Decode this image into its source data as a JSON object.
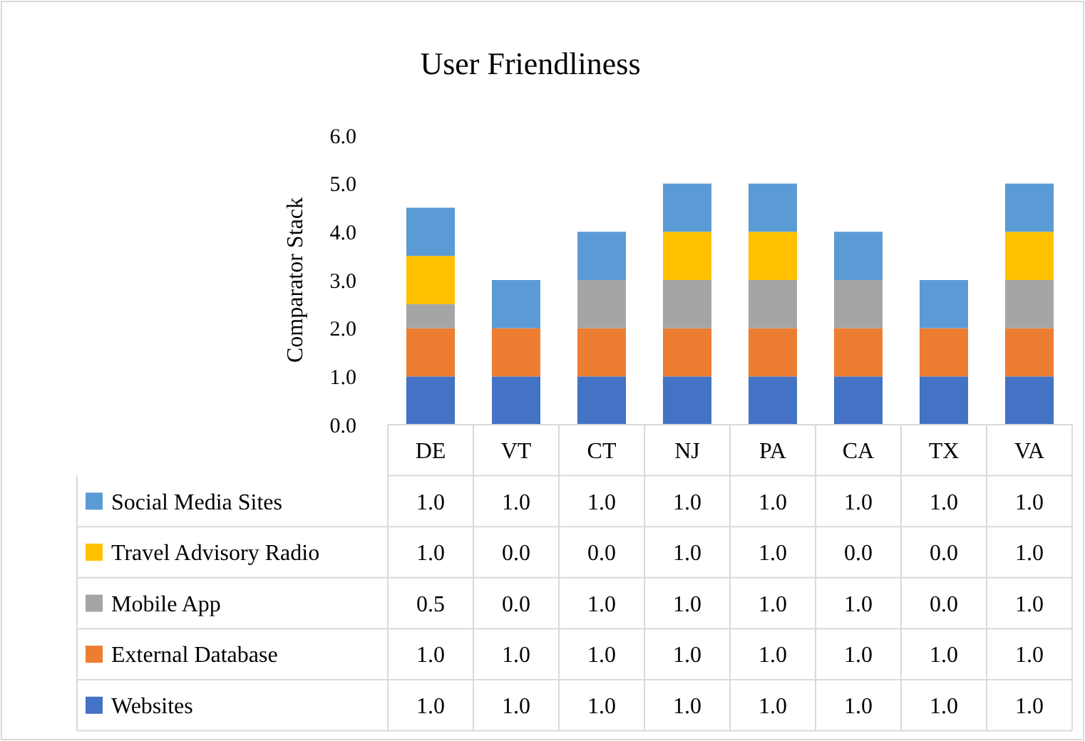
{
  "chart_data": {
    "type": "bar",
    "title": "User Friendliness",
    "ylabel": "Comparator Stack",
    "stacked": true,
    "legend": "bottom",
    "grid": false,
    "categories": [
      "DE",
      "VT",
      "CT",
      "NJ",
      "PA",
      "CA",
      "TX",
      "VA"
    ],
    "ylim": [
      0,
      6
    ],
    "yticks": [
      {
        "value": 0,
        "label": "0.0"
      },
      {
        "value": 1,
        "label": "1.0"
      },
      {
        "value": 2,
        "label": "2.0"
      },
      {
        "value": 3,
        "label": "3.0"
      },
      {
        "value": 4,
        "label": "4.0"
      },
      {
        "value": 5,
        "label": "5.0"
      },
      {
        "value": 6,
        "label": "6.0"
      }
    ],
    "series": [
      {
        "name": "Websites",
        "color": "#4472c4",
        "values": [
          1,
          1,
          1,
          1,
          1,
          1,
          1,
          1
        ],
        "value_labels": [
          "1.0",
          "1.0",
          "1.0",
          "1.0",
          "1.0",
          "1.0",
          "1.0",
          "1.0"
        ]
      },
      {
        "name": "External Database",
        "color": "#ed7d31",
        "values": [
          1,
          1,
          1,
          1,
          1,
          1,
          1,
          1
        ],
        "value_labels": [
          "1.0",
          "1.0",
          "1.0",
          "1.0",
          "1.0",
          "1.0",
          "1.0",
          "1.0"
        ]
      },
      {
        "name": "Mobile App",
        "color": "#a5a5a5",
        "values": [
          0.5,
          0,
          1,
          1,
          1,
          1,
          0,
          1
        ],
        "value_labels": [
          "0.5",
          "0.0",
          "1.0",
          "1.0",
          "1.0",
          "1.0",
          "0.0",
          "1.0"
        ]
      },
      {
        "name": "Travel Advisory Radio",
        "color": "#ffc000",
        "values": [
          1,
          0,
          0,
          1,
          1,
          0,
          0,
          1
        ],
        "value_labels": [
          "1.0",
          "0.0",
          "0.0",
          "1.0",
          "1.0",
          "0.0",
          "0.0",
          "1.0"
        ]
      },
      {
        "name": "Social Media Sites",
        "color": "#5b9bd5",
        "values": [
          1,
          1,
          1,
          1,
          1,
          1,
          1,
          1
        ],
        "value_labels": [
          "1.0",
          "1.0",
          "1.0",
          "1.0",
          "1.0",
          "1.0",
          "1.0",
          "1.0"
        ]
      }
    ]
  }
}
